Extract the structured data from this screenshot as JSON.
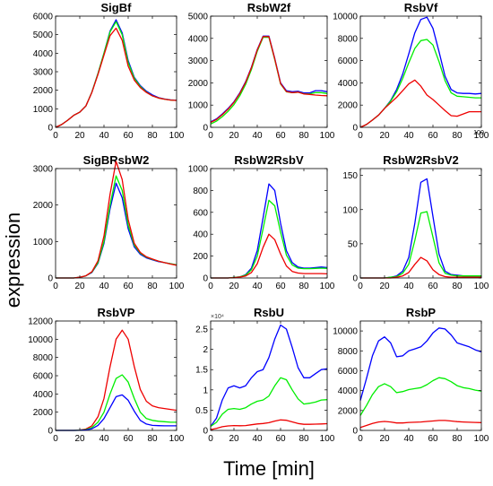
{
  "figure": {
    "ylabel": "expression",
    "xlabel": "Time [min]",
    "colors": {
      "blue": "#0000ff",
      "green": "#00ee00",
      "red": "#ee0000"
    }
  },
  "chart_data": [
    {
      "type": "line",
      "title": "SigBf",
      "xlim": [
        0,
        100
      ],
      "ylim": [
        0,
        6000
      ],
      "xticks": [
        "0",
        "20",
        "40",
        "60",
        "80",
        "100"
      ],
      "yticks": [
        "0",
        "1000",
        "2000",
        "3000",
        "4000",
        "5000",
        "6000"
      ],
      "x": [
        0,
        5,
        10,
        15,
        20,
        25,
        30,
        35,
        40,
        45,
        50,
        55,
        60,
        65,
        70,
        75,
        80,
        85,
        90,
        95,
        100
      ],
      "series": [
        {
          "color": "blue",
          "values": [
            0,
            150,
            380,
            650,
            820,
            1150,
            1900,
            2900,
            4000,
            5200,
            5800,
            5100,
            3600,
            2700,
            2250,
            1950,
            1750,
            1600,
            1530,
            1480,
            1460
          ]
        },
        {
          "color": "green",
          "values": [
            0,
            150,
            380,
            650,
            820,
            1150,
            1900,
            2900,
            4000,
            5150,
            5700,
            5000,
            3500,
            2650,
            2200,
            1900,
            1700,
            1580,
            1520,
            1470,
            1450
          ]
        },
        {
          "color": "red",
          "values": [
            0,
            150,
            380,
            650,
            820,
            1150,
            1880,
            2850,
            3900,
            4950,
            5350,
            4700,
            3300,
            2550,
            2150,
            1880,
            1700,
            1580,
            1520,
            1470,
            1450
          ]
        }
      ]
    },
    {
      "type": "line",
      "title": "RsbW2f",
      "xlim": [
        0,
        100
      ],
      "ylim": [
        0,
        5000
      ],
      "xticks": [
        "0",
        "20",
        "40",
        "60",
        "80",
        "100"
      ],
      "yticks": [
        "0",
        "1000",
        "2000",
        "3000",
        "4000",
        "5000"
      ],
      "x": [
        0,
        5,
        10,
        15,
        20,
        25,
        30,
        35,
        40,
        45,
        50,
        55,
        60,
        65,
        70,
        75,
        80,
        85,
        90,
        95,
        100
      ],
      "series": [
        {
          "color": "blue",
          "values": [
            250,
            380,
            600,
            850,
            1150,
            1550,
            2050,
            2700,
            3500,
            4100,
            4100,
            3100,
            2000,
            1650,
            1600,
            1620,
            1550,
            1550,
            1650,
            1650,
            1600
          ]
        },
        {
          "color": "green",
          "values": [
            150,
            280,
            480,
            720,
            1020,
            1420,
            1930,
            2600,
            3420,
            4050,
            4050,
            3050,
            1950,
            1600,
            1560,
            1580,
            1510,
            1500,
            1560,
            1560,
            1520
          ]
        },
        {
          "color": "red",
          "values": [
            220,
            350,
            570,
            820,
            1120,
            1520,
            2020,
            2680,
            3480,
            4080,
            4080,
            3080,
            1970,
            1610,
            1560,
            1580,
            1500,
            1480,
            1450,
            1430,
            1420
          ]
        }
      ]
    },
    {
      "type": "line",
      "title": "RsbVf",
      "xlim": [
        0,
        100
      ],
      "ylim": [
        0,
        10000
      ],
      "xticks": [
        "0",
        "20",
        "40",
        "60",
        "80",
        "100"
      ],
      "yticks": [
        "0",
        "2000",
        "4000",
        "6000",
        "8000",
        "10000"
      ],
      "x": [
        0,
        5,
        10,
        15,
        20,
        25,
        30,
        35,
        40,
        45,
        50,
        55,
        60,
        65,
        70,
        75,
        80,
        85,
        90,
        95,
        100
      ],
      "series": [
        {
          "color": "blue",
          "values": [
            0,
            250,
            650,
            1100,
            1700,
            2400,
            3400,
            4800,
            6600,
            8500,
            9700,
            9900,
            8900,
            6800,
            4600,
            3400,
            3100,
            3050,
            3050,
            3000,
            3050
          ]
        },
        {
          "color": "green",
          "values": [
            0,
            250,
            650,
            1100,
            1700,
            2350,
            3200,
            4400,
            5800,
            7100,
            7800,
            7900,
            7400,
            5900,
            4200,
            3100,
            2800,
            2750,
            2700,
            2650,
            2650
          ]
        },
        {
          "color": "red",
          "values": [
            0,
            250,
            650,
            1100,
            1700,
            2200,
            2700,
            3300,
            3900,
            4250,
            3700,
            2900,
            2500,
            2000,
            1500,
            1050,
            1000,
            1200,
            1400,
            1400,
            1400
          ]
        }
      ]
    },
    {
      "type": "line",
      "title": "SigBRsbW2",
      "xlim": [
        0,
        100
      ],
      "ylim": [
        0,
        3000
      ],
      "xticks": [
        "0",
        "20",
        "40",
        "60",
        "80",
        "100"
      ],
      "yticks": [
        "0",
        "1000",
        "2000",
        "3000"
      ],
      "x": [
        0,
        5,
        10,
        15,
        20,
        25,
        30,
        35,
        40,
        45,
        50,
        55,
        60,
        65,
        70,
        75,
        80,
        85,
        90,
        95,
        100
      ],
      "series": [
        {
          "color": "blue",
          "values": [
            0,
            0,
            0,
            0,
            20,
            60,
            150,
            400,
            950,
            1900,
            2600,
            2200,
            1350,
            850,
            650,
            550,
            500,
            450,
            420,
            390,
            360
          ]
        },
        {
          "color": "green",
          "values": [
            0,
            0,
            0,
            0,
            20,
            60,
            160,
            420,
            1000,
            2000,
            2800,
            2400,
            1450,
            900,
            680,
            570,
            510,
            460,
            420,
            390,
            360
          ]
        },
        {
          "color": "red",
          "values": [
            0,
            0,
            0,
            0,
            20,
            60,
            170,
            470,
            1150,
            2300,
            3200,
            2700,
            1600,
            950,
            700,
            580,
            520,
            460,
            420,
            380,
            350
          ]
        }
      ]
    },
    {
      "type": "line",
      "title": "RsbW2RsbV",
      "xlim": [
        0,
        100
      ],
      "ylim": [
        0,
        1000
      ],
      "xticks": [
        "0",
        "20",
        "40",
        "60",
        "80",
        "100"
      ],
      "yticks": [
        "0",
        "200",
        "400",
        "600",
        "800",
        "1000"
      ],
      "x": [
        0,
        5,
        10,
        15,
        20,
        25,
        30,
        35,
        40,
        45,
        50,
        55,
        60,
        65,
        70,
        75,
        80,
        85,
        90,
        95,
        100
      ],
      "series": [
        {
          "color": "blue",
          "values": [
            0,
            0,
            0,
            0,
            5,
            10,
            30,
            90,
            250,
            550,
            860,
            800,
            500,
            250,
            140,
            100,
            90,
            90,
            95,
            100,
            95
          ]
        },
        {
          "color": "green",
          "values": [
            0,
            0,
            0,
            0,
            5,
            10,
            25,
            75,
            200,
            450,
            710,
            660,
            420,
            210,
            120,
            90,
            85,
            85,
            88,
            90,
            88
          ]
        },
        {
          "color": "red",
          "values": [
            0,
            0,
            0,
            0,
            3,
            8,
            18,
            50,
            130,
            280,
            400,
            350,
            220,
            110,
            60,
            45,
            40,
            40,
            40,
            40,
            38
          ]
        }
      ]
    },
    {
      "type": "line",
      "title": "RsbW2RsbV2",
      "xlim": [
        0,
        100
      ],
      "ylim": [
        0,
        160
      ],
      "xticks": [
        "0",
        "20",
        "40",
        "60",
        "80",
        "100"
      ],
      "yticks": [
        "0",
        "50",
        "100",
        "150"
      ],
      "x": [
        0,
        5,
        10,
        15,
        20,
        25,
        30,
        35,
        40,
        45,
        50,
        55,
        60,
        65,
        70,
        75,
        80,
        85,
        90,
        95,
        100
      ],
      "series": [
        {
          "color": "blue",
          "values": [
            0,
            0,
            0,
            0,
            0,
            1,
            3,
            10,
            30,
            80,
            140,
            145,
            90,
            35,
            10,
            5,
            4,
            3,
            3,
            3,
            3
          ]
        },
        {
          "color": "green",
          "values": [
            0,
            0,
            0,
            0,
            0,
            1,
            2,
            7,
            20,
            55,
            95,
            97,
            60,
            22,
            7,
            4,
            3,
            3,
            3,
            3,
            3
          ]
        },
        {
          "color": "red",
          "values": [
            0,
            0,
            0,
            0,
            0,
            0,
            1,
            3,
            8,
            20,
            30,
            25,
            12,
            5,
            2,
            1,
            1,
            1,
            1,
            1,
            1
          ]
        }
      ]
    },
    {
      "type": "line",
      "title": "RsbVP",
      "xlim": [
        0,
        100
      ],
      "ylim": [
        0,
        12000
      ],
      "xticks": [
        "0",
        "20",
        "40",
        "60",
        "80",
        "100"
      ],
      "yticks": [
        "0",
        "2000",
        "4000",
        "6000",
        "8000",
        "10000",
        "12000"
      ],
      "x": [
        0,
        5,
        10,
        15,
        20,
        25,
        30,
        35,
        40,
        45,
        50,
        55,
        60,
        65,
        70,
        75,
        80,
        85,
        90,
        95,
        100
      ],
      "series": [
        {
          "color": "red",
          "values": [
            0,
            0,
            0,
            0,
            30,
            150,
            500,
            1500,
            3500,
            7000,
            10000,
            11000,
            10000,
            7000,
            4500,
            3200,
            2700,
            2500,
            2400,
            2300,
            2200
          ]
        },
        {
          "color": "green",
          "values": [
            0,
            0,
            0,
            0,
            20,
            90,
            300,
            900,
            2000,
            4000,
            5700,
            6100,
            5300,
            3500,
            2000,
            1300,
            1100,
            1000,
            950,
            900,
            900
          ]
        },
        {
          "color": "blue",
          "values": [
            0,
            0,
            0,
            0,
            10,
            50,
            180,
            550,
            1300,
            2500,
            3700,
            3900,
            3300,
            2100,
            1100,
            700,
            550,
            520,
            500,
            500,
            500
          ]
        }
      ]
    },
    {
      "type": "line",
      "title": "RsbU",
      "xlim": [
        0,
        100
      ],
      "ylim": [
        0,
        27000
      ],
      "exponent_label": "×10⁴",
      "xticks": [
        "0",
        "20",
        "40",
        "60",
        "80",
        "100"
      ],
      "yticks": [
        "0",
        "0.5",
        "1",
        "1.5",
        "2",
        "2.5"
      ],
      "x": [
        0,
        5,
        10,
        15,
        20,
        25,
        30,
        35,
        40,
        45,
        50,
        55,
        60,
        65,
        70,
        75,
        80,
        85,
        90,
        95,
        100
      ],
      "series": [
        {
          "color": "blue",
          "values": [
            1000,
            3000,
            7500,
            10500,
            11000,
            10500,
            11000,
            13000,
            14500,
            15000,
            18000,
            22500,
            26000,
            25000,
            20500,
            15500,
            13000,
            13000,
            14000,
            15000,
            15200
          ]
        },
        {
          "color": "green",
          "values": [
            1000,
            2000,
            4000,
            5200,
            5400,
            5200,
            5600,
            6500,
            7200,
            7500,
            8500,
            11000,
            13000,
            12500,
            10000,
            7800,
            6500,
            6700,
            7000,
            7500,
            7600
          ]
        },
        {
          "color": "red",
          "values": [
            200,
            500,
            900,
            1100,
            1200,
            1150,
            1200,
            1400,
            1600,
            1700,
            1900,
            2300,
            2600,
            2500,
            2100,
            1700,
            1500,
            1500,
            1550,
            1600,
            1650
          ]
        }
      ]
    },
    {
      "type": "line",
      "title": "RsbP",
      "xlim": [
        0,
        100
      ],
      "ylim": [
        0,
        11000
      ],
      "xticks": [
        "0",
        "20",
        "40",
        "60",
        "80",
        "100"
      ],
      "yticks": [
        "0",
        "2000",
        "4000",
        "6000",
        "8000",
        "10000"
      ],
      "x": [
        0,
        5,
        10,
        15,
        20,
        25,
        30,
        35,
        40,
        45,
        50,
        55,
        60,
        65,
        70,
        75,
        80,
        85,
        90,
        95,
        100
      ],
      "series": [
        {
          "color": "blue",
          "values": [
            3000,
            5200,
            7500,
            9000,
            9400,
            8800,
            7400,
            7500,
            8000,
            8200,
            8400,
            9000,
            9800,
            10300,
            10200,
            9600,
            8800,
            8600,
            8400,
            8100,
            7900
          ]
        },
        {
          "color": "green",
          "values": [
            1500,
            2500,
            3600,
            4400,
            4700,
            4400,
            3800,
            3900,
            4100,
            4200,
            4300,
            4600,
            5000,
            5300,
            5200,
            4900,
            4500,
            4300,
            4200,
            4050,
            3950
          ]
        },
        {
          "color": "red",
          "values": [
            300,
            500,
            700,
            850,
            900,
            850,
            750,
            750,
            800,
            820,
            850,
            900,
            950,
            1000,
            1000,
            950,
            880,
            850,
            820,
            800,
            780
          ]
        }
      ]
    }
  ],
  "stray_tick_label": "100"
}
